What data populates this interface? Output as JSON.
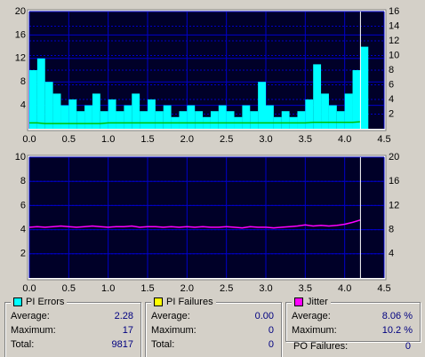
{
  "chart_data": [
    {
      "type": "line",
      "xlim": [
        0,
        4.5
      ],
      "xticks": [
        {
          "value": 0,
          "label": "0.0"
        },
        {
          "value": 0.5,
          "label": "0.5"
        },
        {
          "value": 1,
          "label": "1.0"
        },
        {
          "value": 1.5,
          "label": "1.5"
        },
        {
          "value": 2,
          "label": "2.0"
        },
        {
          "value": 2.5,
          "label": "2.5"
        },
        {
          "value": 3,
          "label": "3.0"
        },
        {
          "value": 3.5,
          "label": "3.5"
        },
        {
          "value": 4,
          "label": "4.0"
        },
        {
          "value": 4.5,
          "label": "4.5"
        }
      ],
      "ylim": [
        0,
        20
      ],
      "yticks": [
        4,
        8,
        12,
        16,
        20
      ],
      "y2lim": [
        0,
        16
      ],
      "y2ticks": [
        2,
        4,
        6,
        8,
        10,
        12,
        14,
        16
      ],
      "grid": true,
      "x": [
        0,
        0.1,
        0.2,
        0.3,
        0.4,
        0.5,
        0.6,
        0.7,
        0.8,
        0.9,
        1,
        1.1,
        1.2,
        1.3,
        1.4,
        1.5,
        1.6,
        1.7,
        1.8,
        1.9,
        2,
        2.1,
        2.2,
        2.3,
        2.4,
        2.5,
        2.6,
        2.7,
        2.8,
        2.9,
        3,
        3.1,
        3.2,
        3.3,
        3.4,
        3.5,
        3.6,
        3.7,
        3.8,
        3.9,
        4,
        4.1,
        4.2
      ],
      "series": [
        {
          "name": "PI Errors",
          "type": "bar",
          "color": "#00ffff",
          "values": [
            10,
            12,
            8,
            6,
            4,
            5,
            3,
            4,
            6,
            3,
            5,
            3,
            4,
            6,
            3,
            5,
            3,
            4,
            2,
            3,
            4,
            3,
            2,
            3,
            4,
            3,
            2,
            4,
            3,
            8,
            4,
            2,
            3,
            2,
            3,
            5,
            11,
            6,
            4,
            3,
            6,
            10,
            14
          ]
        },
        {
          "name": "PI Failures",
          "type": "line",
          "color": "#00c000",
          "values": [
            1,
            1,
            0.9,
            0.9,
            0.9,
            0.9,
            0.9,
            0.9,
            0.9,
            0.9,
            1,
            1,
            1,
            1,
            1,
            1,
            1,
            1,
            1,
            1,
            1,
            1,
            1,
            1,
            1,
            1,
            1,
            1,
            1,
            1,
            1,
            1,
            1,
            1,
            1,
            1,
            1.1,
            1.1,
            1.1,
            1.1,
            1.1,
            1.1,
            1.2
          ]
        }
      ]
    },
    {
      "type": "line",
      "xlim": [
        0,
        4.5
      ],
      "xticks": [
        {
          "value": 0,
          "label": "0.0"
        },
        {
          "value": 0.5,
          "label": "0.5"
        },
        {
          "value": 1,
          "label": "1.0"
        },
        {
          "value": 1.5,
          "label": "1.5"
        },
        {
          "value": 2,
          "label": "2.0"
        },
        {
          "value": 2.5,
          "label": "2.5"
        },
        {
          "value": 3,
          "label": "3.0"
        },
        {
          "value": 3.5,
          "label": "3.5"
        },
        {
          "value": 4,
          "label": "4.0"
        },
        {
          "value": 4.5,
          "label": "4.5"
        }
      ],
      "ylim": [
        0,
        10
      ],
      "yticks": [
        2,
        4,
        6,
        8,
        10
      ],
      "y2lim": [
        0,
        20
      ],
      "y2ticks": [
        4,
        8,
        12,
        16,
        20
      ],
      "grid": true,
      "x": [
        0,
        0.1,
        0.2,
        0.3,
        0.4,
        0.5,
        0.6,
        0.7,
        0.8,
        0.9,
        1,
        1.1,
        1.2,
        1.3,
        1.4,
        1.5,
        1.6,
        1.7,
        1.8,
        1.9,
        2,
        2.1,
        2.2,
        2.3,
        2.4,
        2.5,
        2.6,
        2.7,
        2.8,
        2.9,
        3,
        3.1,
        3.2,
        3.3,
        3.4,
        3.5,
        3.6,
        3.7,
        3.8,
        3.9,
        4,
        4.1,
        4.2
      ],
      "series": [
        {
          "name": "Jitter",
          "type": "line",
          "axis": "y2",
          "color": "#ff00ff",
          "values": [
            8.4,
            8.5,
            8.4,
            8.5,
            8.6,
            8.5,
            8.4,
            8.5,
            8.6,
            8.5,
            8.4,
            8.5,
            8.5,
            8.6,
            8.4,
            8.5,
            8.5,
            8.4,
            8.5,
            8.4,
            8.5,
            8.4,
            8.5,
            8.4,
            8.4,
            8.5,
            8.4,
            8.3,
            8.5,
            8.4,
            8.4,
            8.3,
            8.4,
            8.5,
            8.6,
            8.8,
            8.6,
            8.7,
            8.6,
            8.7,
            8.9,
            9.2,
            9.6
          ]
        }
      ]
    }
  ],
  "panels": [
    {
      "title": "PI Errors",
      "color": "#00ffff",
      "rows": [
        {
          "label": "Average:",
          "value": "2.28"
        },
        {
          "label": "Maximum:",
          "value": "17"
        },
        {
          "label": "Total:",
          "value": "9817"
        }
      ]
    },
    {
      "title": "PI Failures",
      "color": "#ffff00",
      "rows": [
        {
          "label": "Average:",
          "value": "0.00"
        },
        {
          "label": "Maximum:",
          "value": "0"
        },
        {
          "label": "Total:",
          "value": "0"
        }
      ]
    },
    {
      "title": "Jitter",
      "color": "#ff00ff",
      "rows": [
        {
          "label": "Average:",
          "value": "8.06 %"
        },
        {
          "label": "Maximum:",
          "value": "10.2 %"
        }
      ]
    }
  ],
  "po_failures": {
    "label": "PO Failures:",
    "value": "0"
  }
}
